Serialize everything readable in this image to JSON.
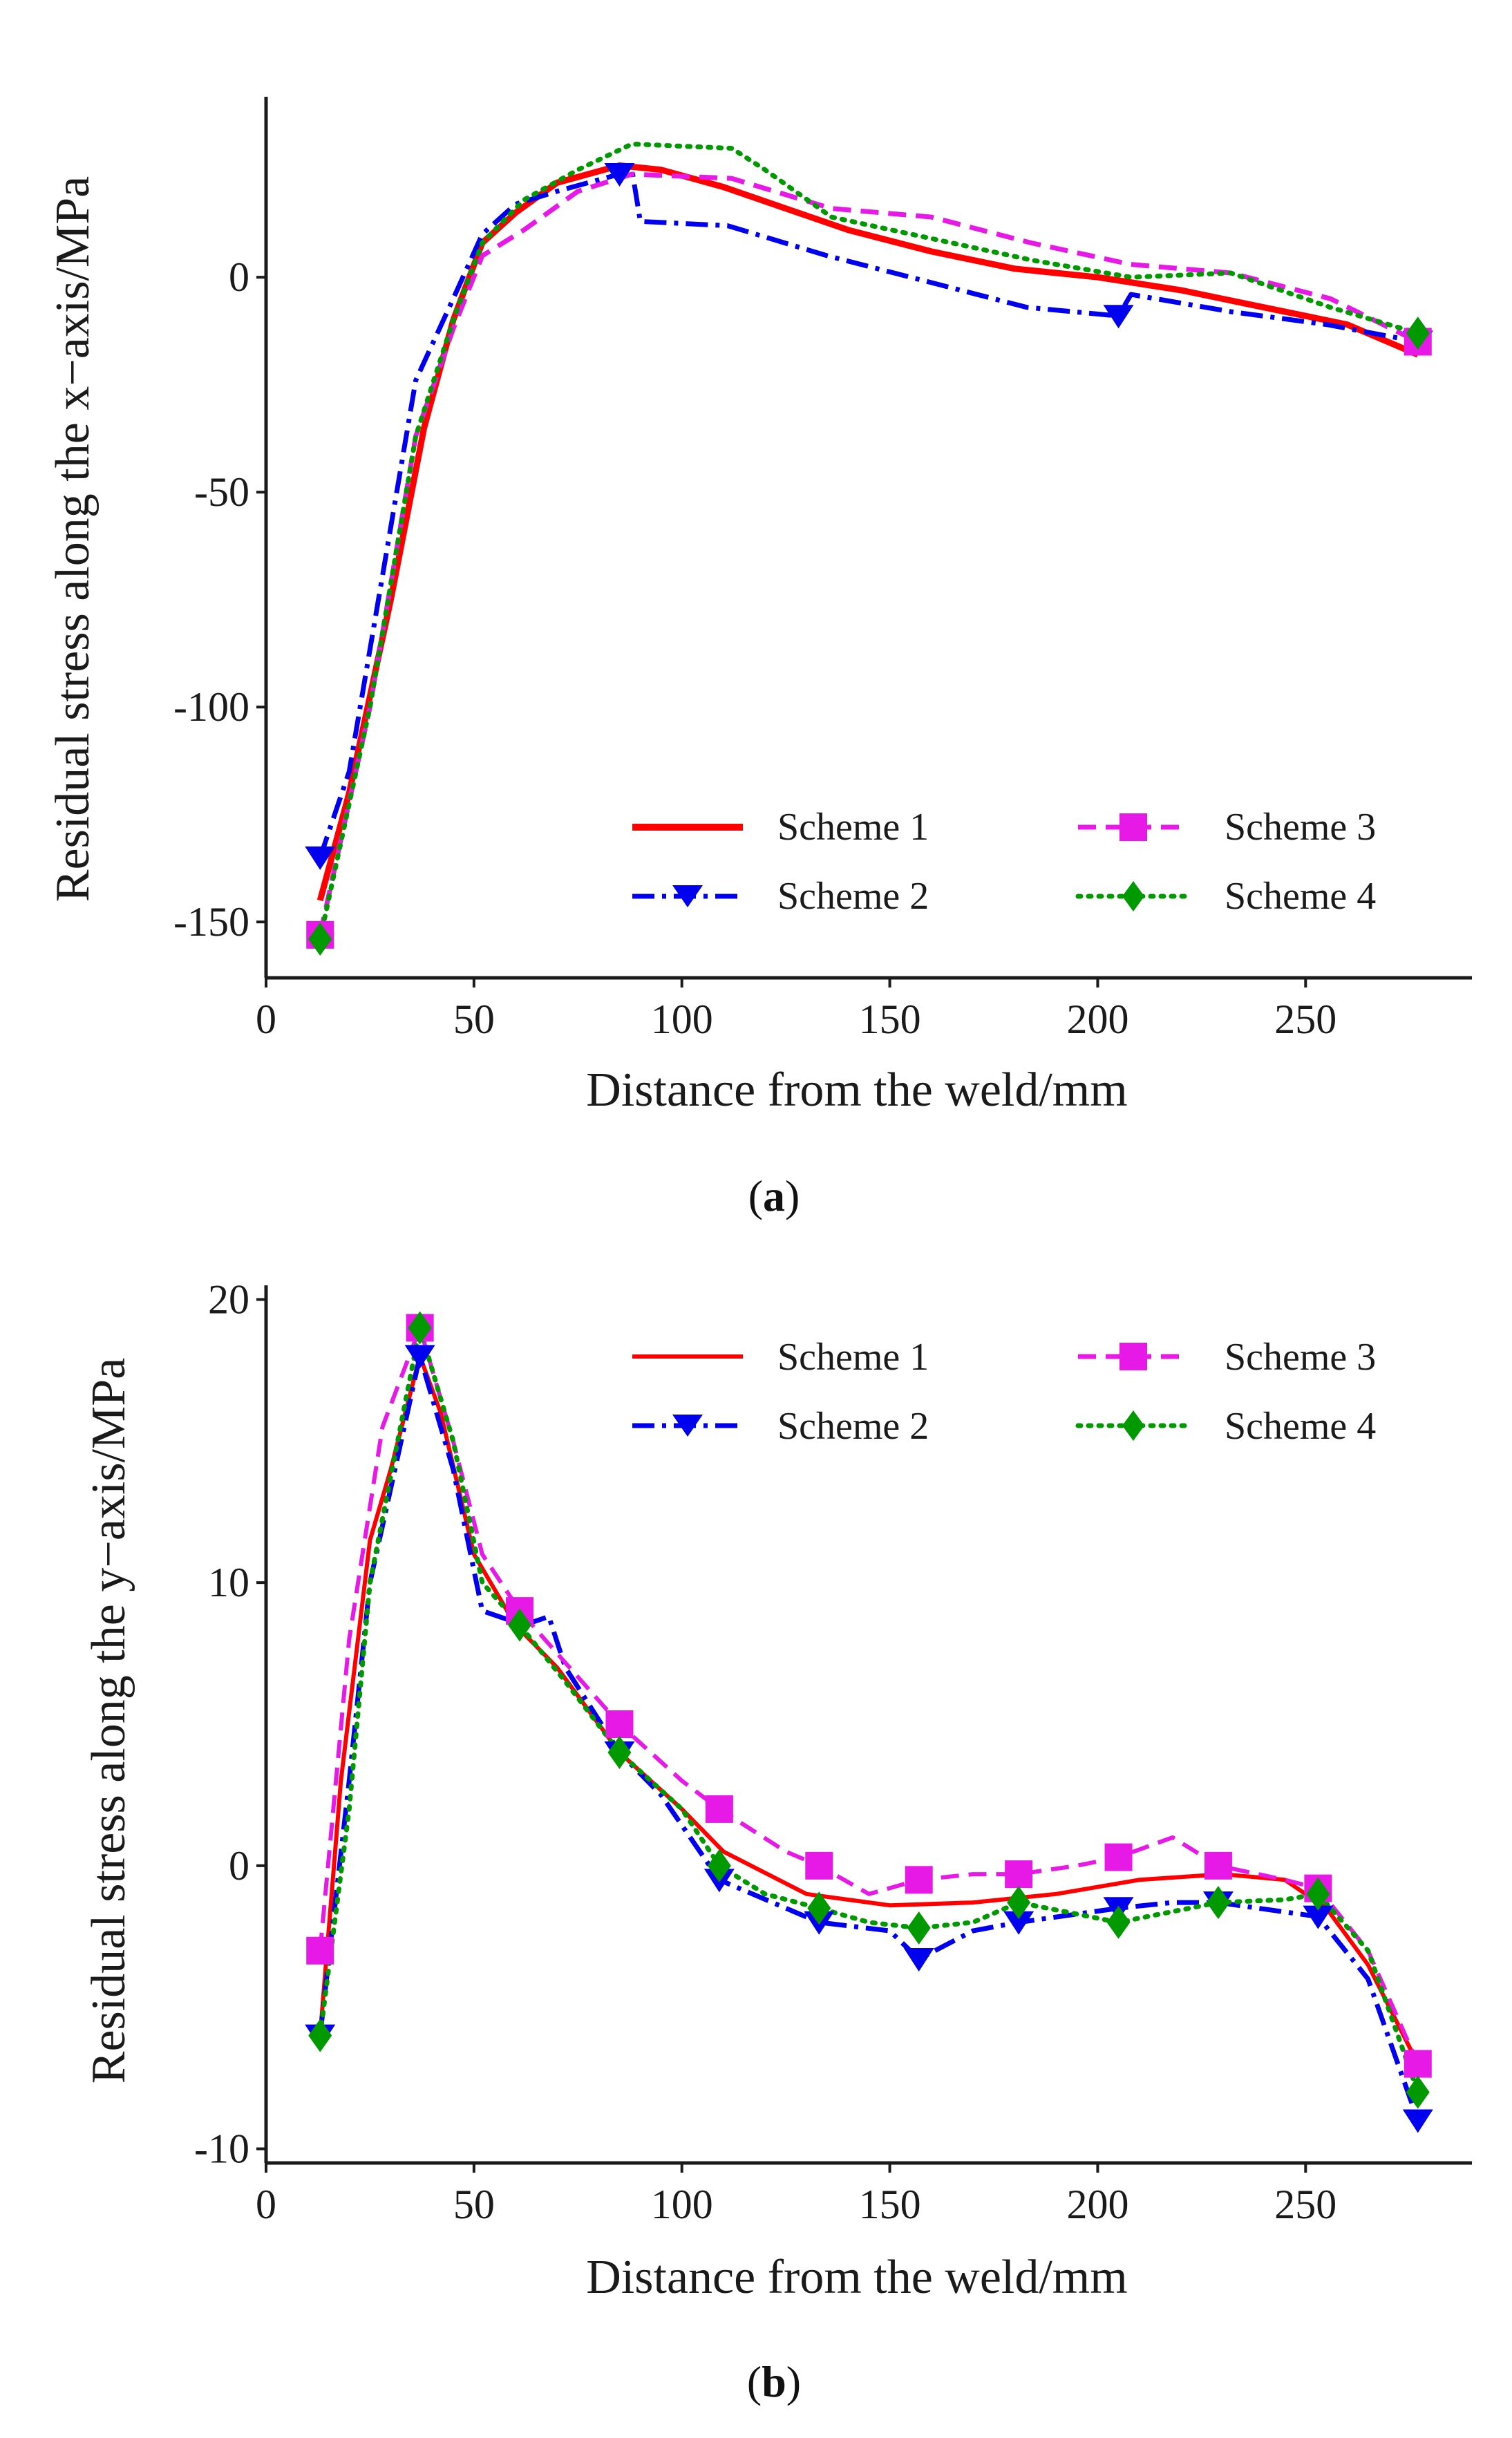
{
  "colors": {
    "scheme1": "#ff0000",
    "scheme2": "#0000ee",
    "scheme3": "#e619e6",
    "scheme4": "#009900",
    "axis": "#1a1a1a"
  },
  "panels": [
    {
      "open": "(",
      "letter": "a",
      "close": ")"
    },
    {
      "open": "(",
      "letter": "b",
      "close": ")"
    }
  ],
  "chart_data": [
    {
      "type": "line",
      "xlabel": "Distance from the weld/mm",
      "ylabel": "Residual stress along the x−axis/MPa",
      "xlim": [
        0,
        290
      ],
      "ylim": [
        -163,
        42
      ],
      "xticks": [
        0,
        50,
        100,
        150,
        200,
        250
      ],
      "xtick_labels": [
        "0",
        "50",
        "100",
        "150",
        "200",
        "250"
      ],
      "yticks": [
        -150,
        -100,
        -50,
        0
      ],
      "ytick_labels": [
        "-150",
        "-100",
        "-50",
        "0"
      ],
      "legend_position": "lower-right",
      "series": [
        {
          "name": "Scheme 1",
          "color": "#ff0000",
          "dash": "solid",
          "marker": "none",
          "x": [
            13,
            20,
            30,
            38,
            45,
            52,
            60,
            70,
            85,
            95,
            110,
            125,
            140,
            160,
            180,
            200,
            220,
            240,
            260,
            277
          ],
          "y": [
            -145,
            -120,
            -75,
            -35,
            -10,
            8,
            15,
            22,
            26,
            25,
            21,
            16,
            11,
            6,
            2,
            0,
            -3,
            -7,
            -11,
            -18
          ]
        },
        {
          "name": "Scheme 2",
          "color": "#0000ee",
          "dash": "dashdot",
          "marker": "triangle-down",
          "x": [
            13,
            20,
            36,
            45,
            52,
            60,
            70,
            85,
            88,
            90,
            111,
            135,
            159,
            183,
            205,
            208,
            232,
            255,
            277
          ],
          "y": [
            -135,
            -115,
            -24,
            -5,
            10,
            17,
            20,
            24,
            25,
            13,
            12,
            5,
            -1,
            -7,
            -9,
            -4,
            -8,
            -11,
            -15
          ]
        },
        {
          "name": "Scheme 3",
          "color": "#e619e6",
          "dash": "dash",
          "marker": "square",
          "x": [
            13,
            25,
            36,
            45,
            52,
            62,
            75,
            88,
            112,
            136,
            160,
            184,
            208,
            232,
            256,
            277
          ],
          "y": [
            -153,
            -100,
            -37,
            -12,
            5,
            11,
            20,
            24,
            23,
            16,
            14,
            8,
            3,
            1,
            -5,
            -15
          ]
        },
        {
          "name": "Scheme 4",
          "color": "#009900",
          "dash": "dotted",
          "marker": "diamond",
          "x": [
            13,
            25,
            36,
            45,
            52,
            62,
            75,
            88,
            112,
            120,
            136,
            160,
            184,
            208,
            232,
            256,
            277
          ],
          "y": [
            -154,
            -100,
            -37,
            -10,
            8,
            18,
            25,
            31,
            30,
            25,
            14,
            9,
            4,
            0,
            1,
            -7,
            -13
          ]
        }
      ]
    },
    {
      "type": "line",
      "xlabel": "Distance from the weld/mm",
      "ylabel": "Residual stress along the y−axis/MPa",
      "xlim": [
        0,
        290
      ],
      "ylim": [
        -10.5,
        20.5
      ],
      "xticks": [
        0,
        50,
        100,
        150,
        200,
        250
      ],
      "xtick_labels": [
        "0",
        "50",
        "100",
        "150",
        "200",
        "250"
      ],
      "yticks": [
        -10,
        0,
        10,
        20
      ],
      "ytick_labels": [
        "-10",
        "0",
        "10",
        "20"
      ],
      "legend_position": "top-right",
      "series": [
        {
          "name": "Scheme 1",
          "color": "#ff0000",
          "dash": "solid",
          "marker": "none",
          "x": [
            13,
            18,
            25,
            30,
            37,
            42,
            50,
            60,
            70,
            85,
            100,
            110,
            130,
            150,
            170,
            190,
            210,
            230,
            245,
            255,
            265,
            277
          ],
          "y": [
            -6,
            3,
            11.5,
            14,
            18,
            16,
            11,
            8.5,
            7,
            4,
            2,
            0.5,
            -1,
            -1.4,
            -1.3,
            -1,
            -0.5,
            -0.3,
            -0.5,
            -1.5,
            -3.5,
            -7
          ]
        },
        {
          "name": "Scheme 2",
          "color": "#0000ee",
          "dash": "dashdot",
          "marker": "triangle-down",
          "x": [
            13,
            20,
            25,
            37,
            45,
            52,
            62,
            68,
            72,
            85,
            95,
            109,
            133,
            150,
            157,
            170,
            181,
            205,
            218,
            229,
            253,
            265,
            277
          ],
          "y": [
            -6,
            3,
            10,
            18,
            14,
            9,
            8.5,
            8.8,
            7,
            4,
            2.5,
            -0.5,
            -2,
            -2.3,
            -3.3,
            -2.3,
            -2,
            -1.5,
            -1.3,
            -1.3,
            -1.8,
            -4,
            -9
          ]
        },
        {
          "name": "Scheme 3",
          "color": "#e619e6",
          "dash": "dash",
          "marker": "square",
          "x": [
            13,
            20,
            28,
            37,
            45,
            52,
            61,
            70,
            85,
            100,
            109,
            125,
            133,
            145,
            157,
            170,
            181,
            195,
            205,
            218,
            229,
            245,
            253,
            265,
            277
          ],
          "y": [
            -3,
            8,
            15.5,
            19,
            15,
            11,
            9,
            7.5,
            5,
            3,
            2,
            0.5,
            0,
            -1,
            -0.5,
            -0.3,
            -0.3,
            0,
            0.3,
            1,
            0,
            -0.5,
            -0.8,
            -3,
            -7
          ]
        },
        {
          "name": "Scheme 4",
          "color": "#009900",
          "dash": "dotted",
          "marker": "diamond",
          "x": [
            13,
            20,
            25,
            37,
            45,
            52,
            61,
            72,
            85,
            100,
            109,
            120,
            133,
            145,
            157,
            170,
            181,
            205,
            229,
            245,
            253,
            265,
            277
          ],
          "y": [
            -6,
            2,
            10,
            19,
            15,
            10,
            8.5,
            6.5,
            4,
            2,
            0,
            -1,
            -1.5,
            -2,
            -2.2,
            -2,
            -1.3,
            -2,
            -1.3,
            -1.2,
            -1,
            -3,
            -8
          ]
        }
      ]
    }
  ]
}
